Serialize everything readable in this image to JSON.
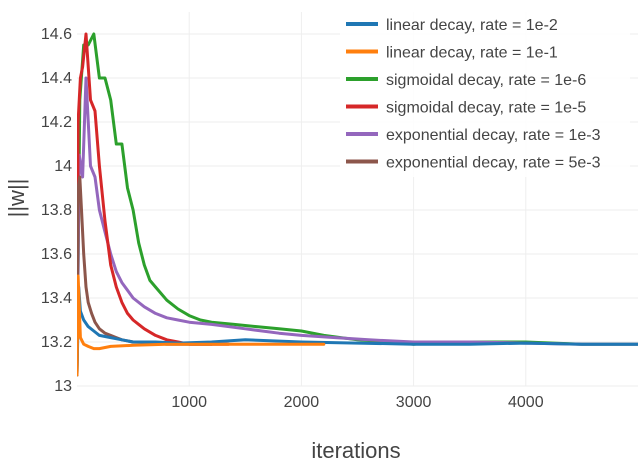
{
  "chart_data": {
    "type": "line",
    "title": "",
    "xlabel": "iterations",
    "ylabel": "||w||",
    "xlim": [
      0,
      5000
    ],
    "ylim": [
      13.0,
      14.7
    ],
    "x_ticks": [
      1000,
      2000,
      3000,
      4000
    ],
    "x_tick_labels": [
      "1000",
      "2000",
      "3000",
      "4000"
    ],
    "y_ticks": [
      13,
      13.2,
      13.4,
      13.6,
      13.8,
      14,
      14.2,
      14.4,
      14.6
    ],
    "y_tick_labels": [
      "13",
      "13.2",
      "13.4",
      "13.6",
      "13.8",
      "14",
      "14.2",
      "14.4",
      "14.6"
    ],
    "grid": true,
    "legend_position": "top-right",
    "series": [
      {
        "name": "linear decay, rate = 1e-2",
        "color": "#1f77b4",
        "x": [
          0,
          15,
          30,
          60,
          100,
          150,
          200,
          300,
          400,
          500,
          700,
          900,
          1200,
          1500,
          2000,
          2500,
          3000,
          3500,
          4000,
          4500,
          5000
        ],
        "y": [
          13.05,
          13.45,
          13.34,
          13.3,
          13.27,
          13.25,
          13.23,
          13.22,
          13.21,
          13.2,
          13.2,
          13.195,
          13.2,
          13.21,
          13.2,
          13.195,
          13.19,
          13.19,
          13.195,
          13.19,
          13.19
        ]
      },
      {
        "name": "linear decay, rate = 1e-1",
        "color": "#ff7f0e",
        "x": [
          0,
          10,
          30,
          60,
          100,
          150,
          200,
          300,
          500,
          800,
          1200,
          1600,
          2000,
          2200
        ],
        "y": [
          13.05,
          13.5,
          13.22,
          13.19,
          13.18,
          13.17,
          13.17,
          13.18,
          13.185,
          13.19,
          13.19,
          13.19,
          13.19,
          13.19
        ]
      },
      {
        "name": "sigmoidal decay, rate = 1e-6",
        "color": "#2ca02c",
        "x": [
          0,
          25,
          60,
          100,
          150,
          200,
          250,
          300,
          350,
          400,
          450,
          500,
          550,
          600,
          650,
          700,
          800,
          900,
          1000,
          1100,
          1200,
          1400,
          1600,
          1800,
          2000,
          2200,
          2500,
          2800,
          3000,
          3200,
          3500,
          4000,
          4500,
          5000
        ],
        "y": [
          13.05,
          14.3,
          14.55,
          14.55,
          14.6,
          14.4,
          14.4,
          14.3,
          14.1,
          14.1,
          13.9,
          13.8,
          13.65,
          13.55,
          13.48,
          13.45,
          13.39,
          13.35,
          13.32,
          13.3,
          13.29,
          13.28,
          13.27,
          13.26,
          13.25,
          13.23,
          13.21,
          13.2,
          13.19,
          13.2,
          13.2,
          13.2,
          13.19,
          13.19
        ]
      },
      {
        "name": "sigmoidal decay, rate = 1e-5",
        "color": "#d62728",
        "x": [
          0,
          10,
          30,
          50,
          80,
          120,
          160,
          200,
          250,
          300,
          350,
          400,
          450,
          500,
          550,
          600,
          700,
          800,
          900,
          1000,
          1100,
          1200,
          1300,
          1350
        ],
        "y": [
          13.05,
          14.2,
          14.4,
          14.45,
          14.6,
          14.3,
          14.25,
          14.0,
          13.75,
          13.55,
          13.45,
          13.38,
          13.33,
          13.3,
          13.28,
          13.26,
          13.23,
          13.21,
          13.2,
          13.19,
          13.19,
          13.19,
          13.19,
          13.19
        ]
      },
      {
        "name": "exponential decay, rate = 1e-3",
        "color": "#9467bd",
        "x": [
          0,
          20,
          50,
          80,
          120,
          160,
          200,
          250,
          300,
          350,
          400,
          500,
          600,
          700,
          800,
          900,
          1000,
          1200,
          1500,
          1800,
          2000,
          2300,
          2600,
          3000,
          3500,
          4000,
          4500,
          5000
        ],
        "y": [
          13.05,
          14.05,
          13.95,
          14.4,
          14.0,
          13.95,
          13.8,
          13.7,
          13.6,
          13.52,
          13.47,
          13.4,
          13.36,
          13.33,
          13.31,
          13.3,
          13.29,
          13.28,
          13.26,
          13.24,
          13.23,
          13.22,
          13.21,
          13.2,
          13.2,
          13.195,
          13.19,
          13.19
        ]
      },
      {
        "name": "exponential decay, rate = 5e-3",
        "color": "#8c564b",
        "x": [
          0,
          10,
          25,
          40,
          60,
          80,
          100,
          130,
          160,
          200,
          250,
          300,
          350,
          400,
          500,
          600,
          700,
          800,
          900,
          1000,
          1100,
          1200
        ],
        "y": [
          13.05,
          13.9,
          13.95,
          13.8,
          13.6,
          13.45,
          13.38,
          13.33,
          13.29,
          13.26,
          13.24,
          13.23,
          13.22,
          13.21,
          13.2,
          13.2,
          13.195,
          13.19,
          13.19,
          13.19,
          13.19,
          13.19
        ]
      }
    ]
  }
}
